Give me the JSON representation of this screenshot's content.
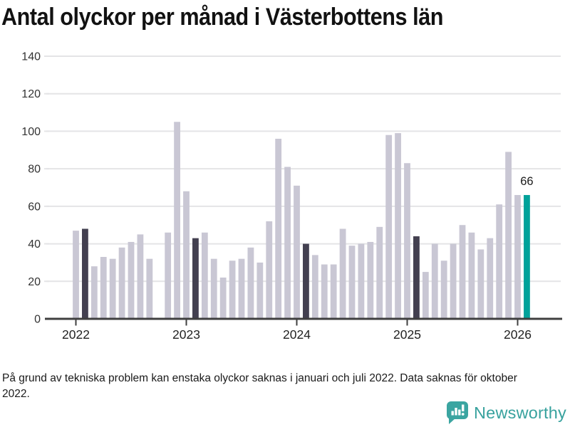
{
  "title": "Antal olyckor per månad i Västerbottens län",
  "footnote": "På grund av tekniska problem kan enstaka olyckor saknas i januari och juli 2022. Data saknas för oktober 2022.",
  "logo": {
    "name": "Newsworthy"
  },
  "colors": {
    "background": "#ffffff",
    "bar_default": "#c9c7d4",
    "bar_reference": "#434050",
    "bar_current": "#00a29a",
    "gridline": "#e4e4e6",
    "axis_line": "#3f3f3f",
    "y_axis_text": "#333333",
    "x_axis_text": "#222222",
    "title_text": "#121212",
    "annotation_text": "#1a1a1a",
    "logo_teal": "#3ba5a1"
  },
  "chart_data": {
    "type": "bar",
    "title": "Antal olyckor per månad i Västerbottens län",
    "xlabel": "",
    "ylabel": "",
    "ylim": [
      0,
      140
    ],
    "yticks": [
      0,
      20,
      40,
      60,
      80,
      100,
      120,
      140
    ],
    "xtick_years": [
      "2022",
      "2023",
      "2024",
      "2025",
      "2026"
    ],
    "grid": true,
    "legend": false,
    "missing_months": [
      "2022-10"
    ],
    "current_value_label": "66",
    "series": [
      {
        "month": "2022-01",
        "value": 47,
        "role": "default"
      },
      {
        "month": "2022-02",
        "value": 48,
        "role": "reference"
      },
      {
        "month": "2022-03",
        "value": 28,
        "role": "default"
      },
      {
        "month": "2022-04",
        "value": 33,
        "role": "default"
      },
      {
        "month": "2022-05",
        "value": 32,
        "role": "default"
      },
      {
        "month": "2022-06",
        "value": 38,
        "role": "default"
      },
      {
        "month": "2022-07",
        "value": 41,
        "role": "default"
      },
      {
        "month": "2022-08",
        "value": 45,
        "role": "default"
      },
      {
        "month": "2022-09",
        "value": 32,
        "role": "default"
      },
      {
        "month": "2022-10",
        "value": null,
        "role": "missing"
      },
      {
        "month": "2022-11",
        "value": 46,
        "role": "default"
      },
      {
        "month": "2022-12",
        "value": 105,
        "role": "default"
      },
      {
        "month": "2023-01",
        "value": 68,
        "role": "default"
      },
      {
        "month": "2023-02",
        "value": 43,
        "role": "reference"
      },
      {
        "month": "2023-03",
        "value": 46,
        "role": "default"
      },
      {
        "month": "2023-04",
        "value": 32,
        "role": "default"
      },
      {
        "month": "2023-05",
        "value": 22,
        "role": "default"
      },
      {
        "month": "2023-06",
        "value": 31,
        "role": "default"
      },
      {
        "month": "2023-07",
        "value": 32,
        "role": "default"
      },
      {
        "month": "2023-08",
        "value": 38,
        "role": "default"
      },
      {
        "month": "2023-09",
        "value": 30,
        "role": "default"
      },
      {
        "month": "2023-10",
        "value": 52,
        "role": "default"
      },
      {
        "month": "2023-11",
        "value": 96,
        "role": "default"
      },
      {
        "month": "2023-12",
        "value": 81,
        "role": "default"
      },
      {
        "month": "2024-01",
        "value": 71,
        "role": "default"
      },
      {
        "month": "2024-02",
        "value": 40,
        "role": "reference"
      },
      {
        "month": "2024-03",
        "value": 34,
        "role": "default"
      },
      {
        "month": "2024-04",
        "value": 29,
        "role": "default"
      },
      {
        "month": "2024-05",
        "value": 29,
        "role": "default"
      },
      {
        "month": "2024-06",
        "value": 48,
        "role": "default"
      },
      {
        "month": "2024-07",
        "value": 39,
        "role": "default"
      },
      {
        "month": "2024-08",
        "value": 40,
        "role": "default"
      },
      {
        "month": "2024-09",
        "value": 41,
        "role": "default"
      },
      {
        "month": "2024-10",
        "value": 49,
        "role": "default"
      },
      {
        "month": "2024-11",
        "value": 98,
        "role": "default"
      },
      {
        "month": "2024-12",
        "value": 99,
        "role": "default"
      },
      {
        "month": "2025-01",
        "value": 83,
        "role": "default"
      },
      {
        "month": "2025-02",
        "value": 44,
        "role": "reference"
      },
      {
        "month": "2025-03",
        "value": 25,
        "role": "default"
      },
      {
        "month": "2025-04",
        "value": 40,
        "role": "default"
      },
      {
        "month": "2025-05",
        "value": 31,
        "role": "default"
      },
      {
        "month": "2025-06",
        "value": 40,
        "role": "default"
      },
      {
        "month": "2025-07",
        "value": 50,
        "role": "default"
      },
      {
        "month": "2025-08",
        "value": 46,
        "role": "default"
      },
      {
        "month": "2025-09",
        "value": 37,
        "role": "default"
      },
      {
        "month": "2025-10",
        "value": 43,
        "role": "default"
      },
      {
        "month": "2025-11",
        "value": 61,
        "role": "default"
      },
      {
        "month": "2025-12",
        "value": 89,
        "role": "default"
      },
      {
        "month": "2026-01",
        "value": 66,
        "role": "default"
      },
      {
        "month": "2026-02",
        "value": 66,
        "role": "current",
        "label": "66"
      }
    ]
  }
}
